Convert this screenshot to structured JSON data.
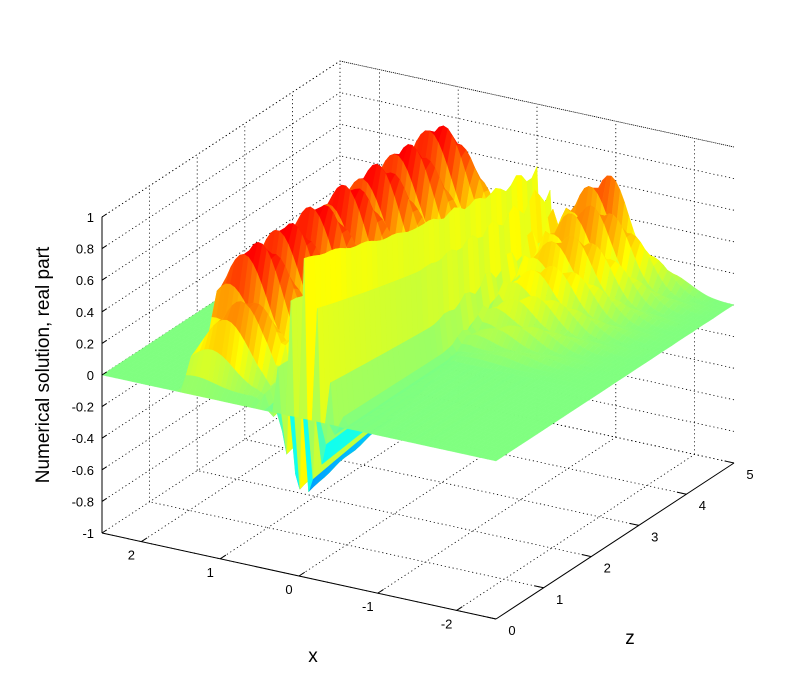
{
  "chart_data": {
    "type": "surface",
    "title": "",
    "xlabel": "x",
    "ylabel": "z",
    "zlabel": "Numerical solution, real part",
    "xlim": [
      -2.5,
      2.5
    ],
    "ylim": [
      0,
      5
    ],
    "zlim": [
      -1,
      1
    ],
    "x_ticks": [
      "2",
      "1",
      "0",
      "-1",
      "-2"
    ],
    "z_ticks": [
      "0",
      "1",
      "2",
      "3",
      "4",
      "5"
    ],
    "v_ticks": [
      "1",
      "0.8",
      "0.6",
      "0.4",
      "0.2",
      "0",
      "-0.2",
      "-0.4",
      "-0.6",
      "-0.8",
      "-1"
    ],
    "grid": true,
    "colormap": "jet",
    "colors": {
      "low": "#00008f",
      "mid": "#00ffff",
      "high": "#800000"
    },
    "description_values": {
      "flat_region_value": 0,
      "peak_region": "oscillating wave packet near x = 0, z from 0 to 5"
    }
  }
}
